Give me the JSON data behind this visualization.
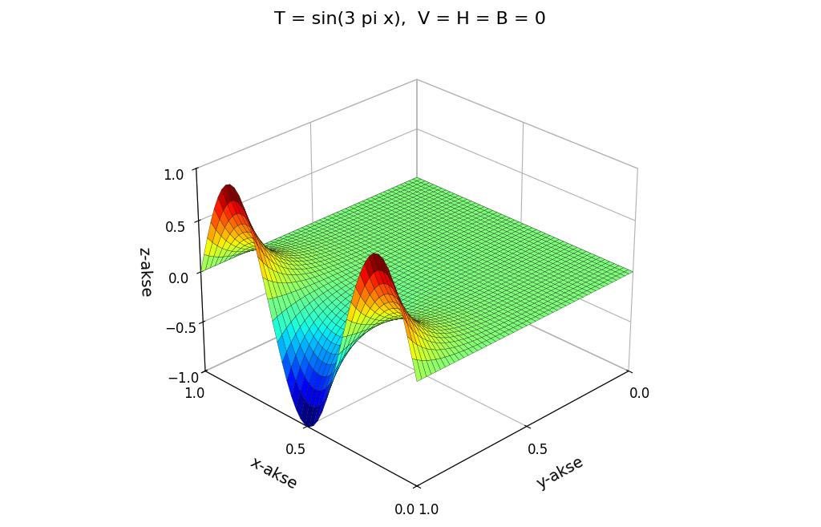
{
  "title": "T = sin(3 pi x),  V = H = B = 0",
  "xlabel": "x-akse",
  "ylabel": "y-akse",
  "zlabel": "z-akse",
  "xlim": [
    0,
    1
  ],
  "ylim": [
    0,
    1
  ],
  "zlim": [
    -1,
    1
  ],
  "n_points": 50,
  "elev": 28,
  "azim": -135,
  "title_fontsize": 16,
  "axis_label_fontsize": 14,
  "tick_fontsize": 12,
  "background_color": "#ffffff",
  "colormap": "jet"
}
